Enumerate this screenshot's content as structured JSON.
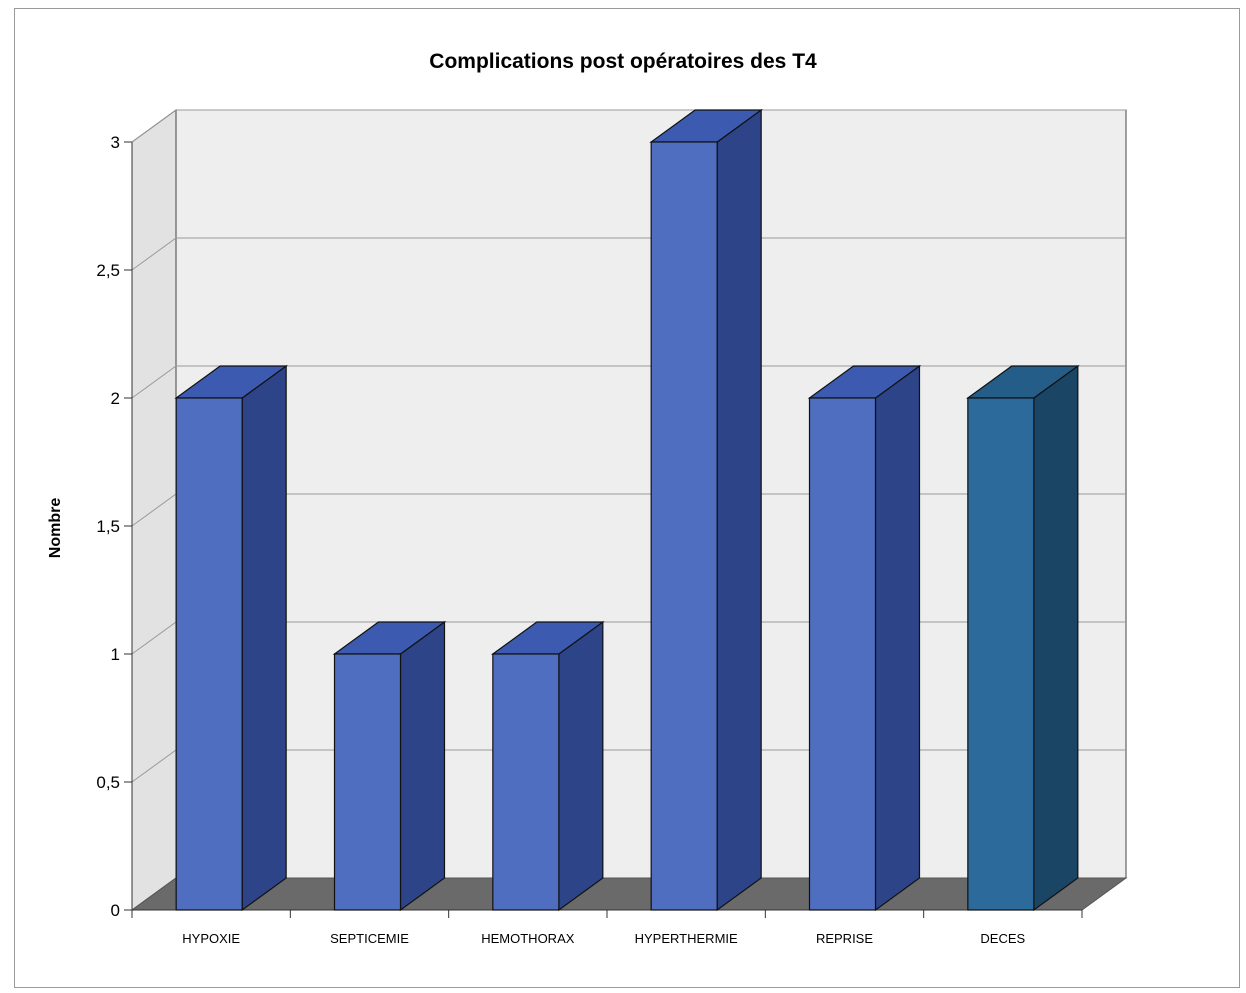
{
  "chart_data": {
    "type": "bar",
    "style": "3d-column",
    "title": "Complications post opératoires des T4",
    "xlabel": "",
    "ylabel": "Nombre",
    "categories": [
      "HYPOXIE",
      "SEPTICEMIE",
      "HEMOTHORAX",
      "HYPERTHERMIE",
      "REPRISE",
      "DECES"
    ],
    "values": [
      2,
      1,
      1,
      3,
      2,
      2
    ],
    "ylim": [
      0,
      3
    ],
    "yticks": [
      "0",
      "0,5",
      "1",
      "1,5",
      "2",
      "2,5",
      "3"
    ],
    "grid": true,
    "legend": "none",
    "colors": {
      "bar_front": "#4f6ec0",
      "bar_side": "#2d4488",
      "bar_top": "#3c5bb0",
      "last_bar_front": "#2b6a9a",
      "last_bar_side": "#1b4565",
      "last_bar_top": "#245d88",
      "wall": "#eeeeee",
      "floor": "#6a6a6a",
      "grid": "#9a9a9a"
    }
  }
}
